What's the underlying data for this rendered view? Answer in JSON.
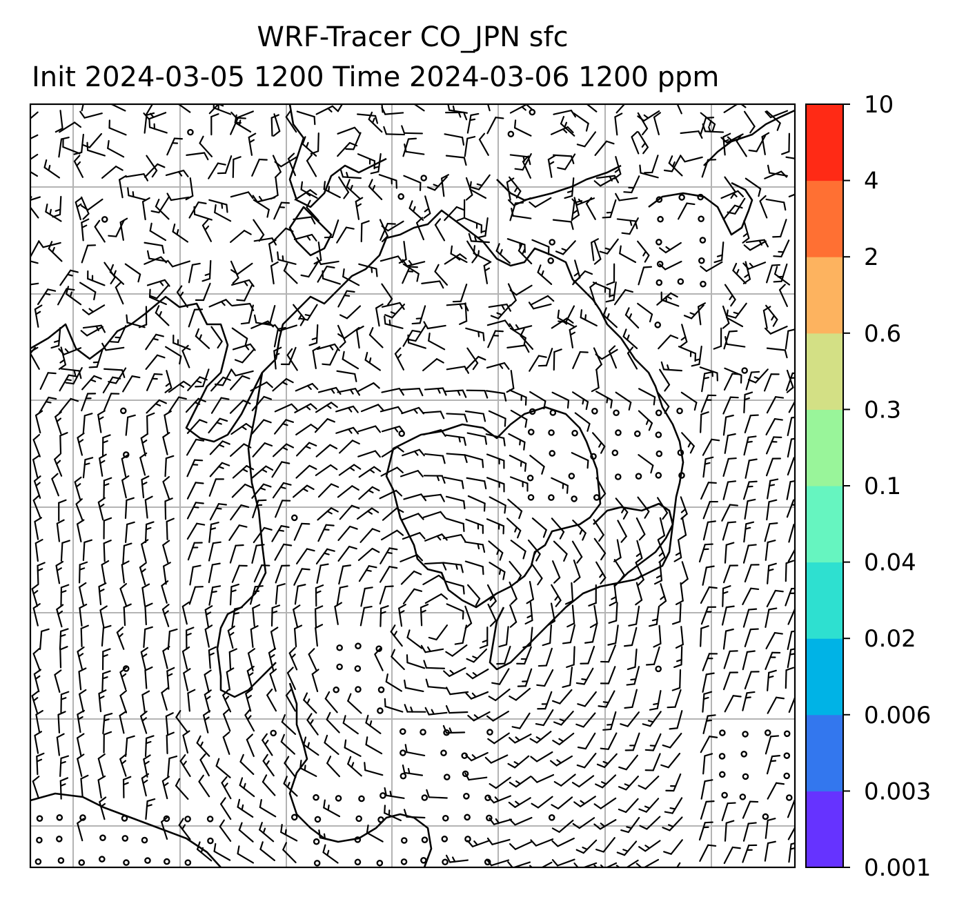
{
  "title": {
    "line1": "WRF-Tracer CO_JPN sfc",
    "line2": "Init 2024-03-05 1200 Time 2024-03-06 1200 ppm"
  },
  "colorbar": {
    "levels": [
      "0.001",
      "0.003",
      "0.006",
      "0.02",
      "0.04",
      "0.1",
      "0.3",
      "0.6",
      "2",
      "4",
      "10"
    ],
    "colors": [
      "#6633ff",
      "#3377ee",
      "#00b3e6",
      "#2ee0d0",
      "#66f5c0",
      "#99f59a",
      "#d3e085",
      "#fdb35f",
      "#ff7033",
      "#ff2a15"
    ]
  },
  "map": {
    "gridlines": true,
    "legend_position": "right",
    "barb_color": "#000000",
    "grid_color": "#b3b3b3"
  }
}
